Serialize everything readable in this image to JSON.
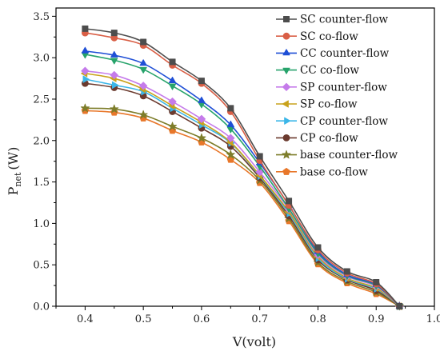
{
  "chart_data": {
    "type": "line",
    "xlabel": "V(volt)",
    "ylabel_main": "P",
    "ylabel_sub": "net",
    "ylabel_unit": "(W)",
    "xlim": [
      0.35,
      1.0
    ],
    "ylim": [
      0.0,
      3.6
    ],
    "xticks": [
      0.4,
      0.5,
      0.6,
      0.7,
      0.8,
      0.9,
      1.0
    ],
    "xtick_labels": [
      "0.4",
      "0.5",
      "0.6",
      "0.7",
      "0.8",
      "0.9",
      "1.0"
    ],
    "yticks": [
      0.0,
      0.5,
      1.0,
      1.5,
      2.0,
      2.5,
      3.0,
      3.5
    ],
    "ytick_labels": [
      "0.0",
      "0.5",
      "1.0",
      "1.5",
      "2.0",
      "2.5",
      "3.0",
      "3.5"
    ],
    "grid": false,
    "legend_position": "top-right",
    "x": [
      0.4,
      0.45,
      0.5,
      0.55,
      0.6,
      0.65,
      0.7,
      0.75,
      0.8,
      0.85,
      0.9,
      0.94
    ],
    "series": [
      {
        "name": "SC counter-flow",
        "color": "#4d4d4d",
        "marker": "square",
        "values": [
          3.35,
          3.3,
          3.19,
          2.95,
          2.72,
          2.39,
          1.81,
          1.27,
          0.71,
          0.42,
          0.29,
          0.0
        ]
      },
      {
        "name": "SC co-flow",
        "color": "#d95f46",
        "marker": "circle",
        "values": [
          3.3,
          3.24,
          3.15,
          2.91,
          2.69,
          2.35,
          1.76,
          1.22,
          0.68,
          0.4,
          0.27,
          0.0
        ]
      },
      {
        "name": "CC counter-flow",
        "color": "#1f4fd6",
        "marker": "triangle-up",
        "values": [
          3.08,
          3.03,
          2.93,
          2.72,
          2.48,
          2.19,
          1.73,
          1.22,
          0.66,
          0.38,
          0.26,
          0.0
        ]
      },
      {
        "name": "CC co-flow",
        "color": "#27a36b",
        "marker": "triangle-down",
        "values": [
          3.04,
          2.97,
          2.86,
          2.66,
          2.44,
          2.14,
          1.69,
          1.18,
          0.64,
          0.37,
          0.25,
          0.0
        ]
      },
      {
        "name": "SP counter-flow",
        "color": "#c57bea",
        "marker": "diamond",
        "values": [
          2.84,
          2.79,
          2.66,
          2.47,
          2.26,
          2.03,
          1.62,
          1.17,
          0.62,
          0.36,
          0.24,
          0.0
        ]
      },
      {
        "name": "SP co-flow",
        "color": "#c9a21c",
        "marker": "triangle-left",
        "values": [
          2.81,
          2.75,
          2.62,
          2.42,
          2.22,
          1.98,
          1.58,
          1.14,
          0.6,
          0.34,
          0.22,
          0.0
        ]
      },
      {
        "name": "CP counter-flow",
        "color": "#3bb6e8",
        "marker": "triangle-right",
        "values": [
          2.74,
          2.67,
          2.59,
          2.39,
          2.19,
          1.97,
          1.57,
          1.12,
          0.58,
          0.33,
          0.21,
          0.0
        ]
      },
      {
        "name": "CP co-flow",
        "color": "#6b3a2e",
        "marker": "circle",
        "values": [
          2.69,
          2.64,
          2.54,
          2.35,
          2.15,
          1.93,
          1.55,
          1.09,
          0.56,
          0.32,
          0.19,
          0.0
        ]
      },
      {
        "name": "base counter-flow",
        "color": "#7d7d2a",
        "marker": "star",
        "values": [
          2.39,
          2.38,
          2.31,
          2.17,
          2.03,
          1.83,
          1.52,
          1.06,
          0.53,
          0.3,
          0.17,
          0.0
        ]
      },
      {
        "name": "base co-flow",
        "color": "#e8772a",
        "marker": "pentagon",
        "values": [
          2.36,
          2.34,
          2.27,
          2.12,
          1.98,
          1.77,
          1.49,
          1.03,
          0.51,
          0.28,
          0.15,
          0.0
        ]
      }
    ]
  }
}
